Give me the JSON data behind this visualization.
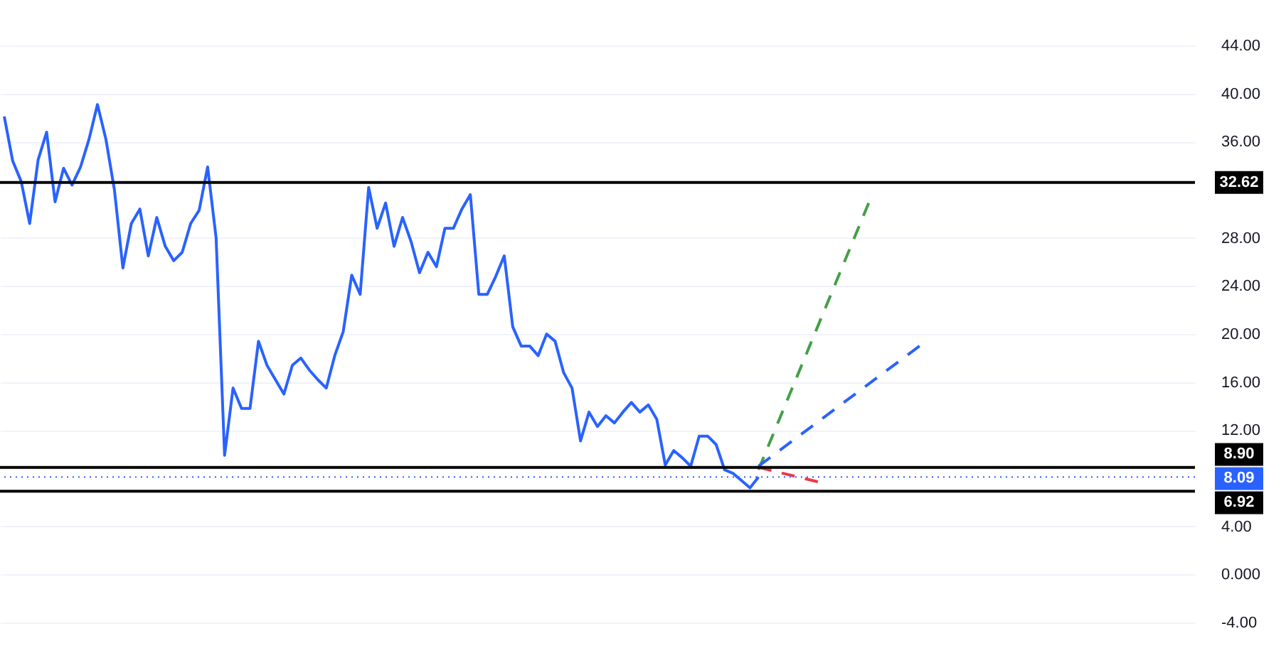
{
  "chart_data": {
    "type": "line",
    "categories": [
      null,
      null,
      null,
      null,
      null,
      null,
      null,
      null,
      null,
      null,
      null,
      null,
      null,
      null,
      null,
      null,
      null,
      null,
      null,
      null,
      null,
      null,
      null,
      null,
      null,
      null,
      null,
      null,
      null,
      null,
      null,
      null,
      null,
      null,
      null,
      null,
      null,
      null,
      null,
      null,
      null,
      null,
      null,
      null,
      null,
      null,
      null,
      null,
      null,
      null,
      null,
      null,
      null,
      null,
      null,
      null,
      null,
      null,
      null,
      null,
      null,
      null,
      null,
      null,
      null,
      null,
      null,
      null,
      null,
      null,
      null,
      null,
      null,
      null,
      null,
      null,
      null,
      null,
      null,
      null,
      null,
      null,
      null,
      null,
      null,
      null,
      null,
      null,
      null,
      null,
      null,
      null,
      null,
      null,
      null,
      null,
      null,
      null,
      null,
      null,
      null,
      null,
      null,
      null,
      null,
      null,
      null,
      null,
      null,
      null,
      null,
      null,
      null,
      null,
      null,
      null,
      null,
      null,
      null,
      null,
      null,
      null,
      null,
      null,
      null,
      null,
      null,
      null,
      null,
      null,
      null,
      null,
      null,
      null,
      null,
      null,
      null,
      null,
      null,
      null,
      null
    ],
    "series": [
      {
        "color": "#2962ff",
        "line_style": "solid",
        "values": [
          38.1,
          34.4,
          32.7,
          29.2,
          34.5,
          36.8,
          31.0,
          33.8,
          32.4,
          33.9,
          36.2,
          39.1,
          36.2,
          32.0,
          25.5,
          29.2,
          30.4,
          26.5,
          29.7,
          27.3,
          26.1,
          26.8,
          29.2,
          30.3,
          33.9,
          28.0,
          9.9,
          15.5,
          13.8,
          13.8,
          19.4,
          17.4,
          16.2,
          15.0,
          17.4,
          18.0,
          17.0,
          16.2,
          15.5,
          18.2,
          20.2,
          24.9,
          23.3,
          32.2,
          28.8,
          30.9,
          27.3,
          29.7,
          27.7,
          25.1,
          26.8,
          25.6,
          28.8,
          28.8,
          30.4,
          31.6,
          23.3,
          23.3,
          24.8,
          26.5,
          20.6,
          19.0,
          19.0,
          18.2,
          20.0,
          19.4,
          16.8,
          15.5,
          11.1,
          13.5,
          12.3,
          13.2,
          12.6,
          13.5,
          14.3,
          13.5,
          14.1,
          12.9,
          9.1,
          10.3,
          9.7,
          9.0,
          11.5,
          11.5,
          10.8,
          8.7,
          8.4,
          7.8,
          7.2,
          8.1,
          null,
          null,
          null,
          null,
          null,
          null,
          null,
          null,
          null,
          null,
          null,
          null,
          null,
          null,
          null,
          null,
          null,
          null,
          null,
          null,
          null,
          null,
          null,
          null,
          null,
          null,
          null,
          null,
          null,
          null,
          null,
          null,
          null,
          null,
          null,
          null,
          null,
          null,
          null,
          null,
          null,
          null,
          null,
          null,
          null,
          null,
          null,
          null,
          null,
          null,
          null
        ]
      },
      {
        "type": "line",
        "color": "#43a047",
        "line_style": "dashed",
        "values": [
          null,
          null,
          null,
          null,
          null,
          null,
          null,
          null,
          null,
          null,
          null,
          null,
          null,
          null,
          null,
          null,
          null,
          null,
          null,
          null,
          null,
          null,
          null,
          null,
          null,
          null,
          null,
          null,
          null,
          null,
          null,
          null,
          null,
          null,
          null,
          null,
          null,
          null,
          null,
          null,
          null,
          null,
          null,
          null,
          null,
          null,
          null,
          null,
          null,
          null,
          null,
          null,
          null,
          null,
          null,
          null,
          null,
          null,
          null,
          null,
          null,
          null,
          null,
          null,
          null,
          null,
          null,
          null,
          null,
          null,
          null,
          null,
          null,
          null,
          null,
          null,
          null,
          null,
          null,
          null,
          null,
          null,
          null,
          null,
          null,
          null,
          null,
          null,
          null,
          8.7,
          null,
          null,
          null,
          null,
          null,
          null,
          null,
          null,
          null,
          null,
          null,
          null,
          30.9,
          null,
          null,
          null,
          null,
          null,
          null,
          null,
          null,
          null,
          null,
          null,
          null,
          null,
          null,
          null,
          null,
          null,
          null,
          null,
          null,
          null,
          null,
          null,
          null,
          null,
          null,
          null,
          null,
          null,
          null,
          null,
          null,
          null,
          null,
          null,
          null,
          null,
          null
        ]
      },
      {
        "type": "line",
        "color": "#2962ff",
        "line_style": "dashed",
        "values": [
          null,
          null,
          null,
          null,
          null,
          null,
          null,
          null,
          null,
          null,
          null,
          null,
          null,
          null,
          null,
          null,
          null,
          null,
          null,
          null,
          null,
          null,
          null,
          null,
          null,
          null,
          null,
          null,
          null,
          null,
          null,
          null,
          null,
          null,
          null,
          null,
          null,
          null,
          null,
          null,
          null,
          null,
          null,
          null,
          null,
          null,
          null,
          null,
          null,
          null,
          null,
          null,
          null,
          null,
          null,
          null,
          null,
          null,
          null,
          null,
          null,
          null,
          null,
          null,
          null,
          null,
          null,
          null,
          null,
          null,
          null,
          null,
          null,
          null,
          null,
          null,
          null,
          null,
          null,
          null,
          null,
          null,
          null,
          null,
          null,
          null,
          null,
          null,
          null,
          9.0,
          null,
          null,
          null,
          null,
          null,
          null,
          null,
          null,
          null,
          null,
          null,
          null,
          null,
          null,
          null,
          null,
          null,
          null,
          19.0,
          null,
          null,
          null,
          null,
          null,
          null,
          null,
          null,
          null,
          null,
          null,
          null,
          null,
          null,
          null,
          null,
          null,
          null,
          null,
          null,
          null,
          null,
          null,
          null,
          null,
          null,
          null,
          null,
          null,
          null,
          null,
          null
        ]
      },
      {
        "type": "line",
        "color": "#f23645",
        "line_style": "dashed",
        "values": [
          null,
          null,
          null,
          null,
          null,
          null,
          null,
          null,
          null,
          null,
          null,
          null,
          null,
          null,
          null,
          null,
          null,
          null,
          null,
          null,
          null,
          null,
          null,
          null,
          null,
          null,
          null,
          null,
          null,
          null,
          null,
          null,
          null,
          null,
          null,
          null,
          null,
          null,
          null,
          null,
          null,
          null,
          null,
          null,
          null,
          null,
          null,
          null,
          null,
          null,
          null,
          null,
          null,
          null,
          null,
          null,
          null,
          null,
          null,
          null,
          null,
          null,
          null,
          null,
          null,
          null,
          null,
          null,
          null,
          null,
          null,
          null,
          null,
          null,
          null,
          null,
          null,
          null,
          null,
          null,
          null,
          null,
          null,
          null,
          null,
          null,
          null,
          null,
          null,
          8.9,
          null,
          null,
          null,
          null,
          null,
          null,
          7.7,
          null,
          null,
          null,
          null,
          null,
          null,
          null,
          null,
          null,
          null,
          null,
          null,
          null,
          null,
          null,
          null,
          null,
          null,
          null,
          null,
          null,
          null,
          null,
          null,
          null,
          null,
          null,
          null,
          null,
          null,
          null,
          null,
          null,
          null,
          null,
          null,
          null,
          null,
          null,
          null,
          null,
          null,
          null,
          null
        ]
      }
    ],
    "ylim": [
      -7.8,
      47.8
    ],
    "yticks": [
      {
        "value": -4,
        "label": "-4.00"
      },
      {
        "value": 0,
        "label": "0.000"
      },
      {
        "value": 4,
        "label": "4.00"
      },
      {
        "value": 12,
        "label": "12.00"
      },
      {
        "value": 16,
        "label": "16.00"
      },
      {
        "value": 20,
        "label": "20.00"
      },
      {
        "value": 24,
        "label": "24.00"
      },
      {
        "value": 28,
        "label": "28.00"
      },
      {
        "value": 36,
        "label": "36.00"
      },
      {
        "value": 40,
        "label": "40.00"
      },
      {
        "value": 44,
        "label": "44.00"
      }
    ],
    "ref_lines": [
      {
        "axis": "y",
        "value": 32.62,
        "label": "32.62",
        "color": "#000000",
        "line_style": "solid"
      },
      {
        "axis": "y",
        "value": 8.9,
        "label": "8.90",
        "color": "#000000",
        "line_style": "solid"
      },
      {
        "axis": "y",
        "value": 6.92,
        "label": "6.92",
        "color": "#000000",
        "line_style": "solid"
      },
      {
        "axis": "y",
        "value": 8.09,
        "label": "8.09",
        "color": "#2962ff",
        "line_style": "dotted"
      }
    ],
    "grid": "y",
    "tick_labels": "y"
  }
}
